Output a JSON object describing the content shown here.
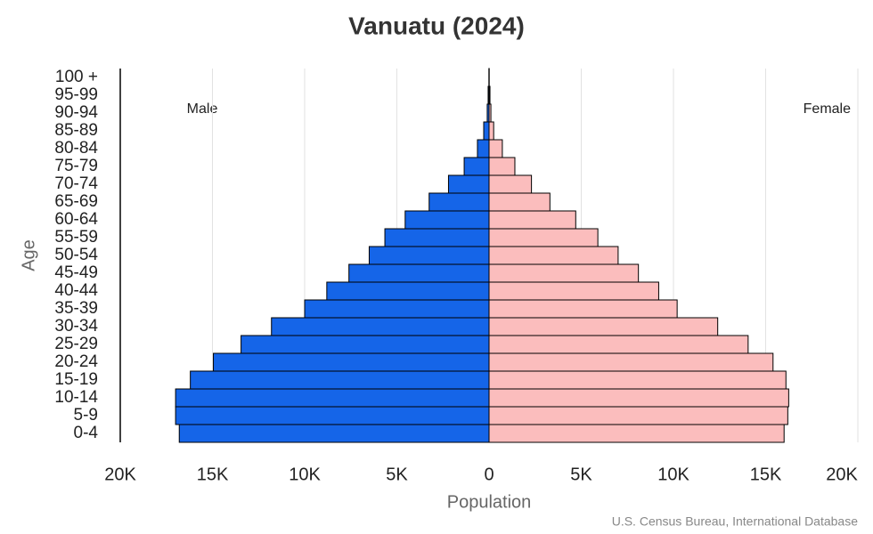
{
  "chart_data": {
    "type": "pyramid",
    "title": "Vanuatu (2024)",
    "categories": [
      "0-4",
      "5-9",
      "10-14",
      "15-19",
      "20-24",
      "25-29",
      "30-34",
      "35-39",
      "40-44",
      "45-49",
      "50-54",
      "55-59",
      "60-64",
      "65-69",
      "70-74",
      "75-79",
      "80-84",
      "85-89",
      "90-94",
      "95-99",
      "100 +"
    ],
    "series": [
      {
        "name": "Male",
        "color": "#1565e8",
        "values": [
          16800,
          17000,
          17000,
          16200,
          14950,
          13450,
          11800,
          10000,
          8800,
          7600,
          6500,
          5650,
          4550,
          3250,
          2200,
          1350,
          630,
          290,
          100,
          50,
          10
        ]
      },
      {
        "name": "Female",
        "color": "#fbbdbd",
        "values": [
          16000,
          16200,
          16250,
          16100,
          15400,
          14050,
          12400,
          10200,
          9200,
          8100,
          7000,
          5900,
          4700,
          3300,
          2300,
          1400,
          720,
          250,
          100,
          50,
          10
        ]
      }
    ],
    "xlim": [
      -20000,
      20000
    ],
    "xticks": [
      {
        "value": -20000,
        "label": "20K"
      },
      {
        "value": -15000,
        "label": "15K"
      },
      {
        "value": -10000,
        "label": "10K"
      },
      {
        "value": -5000,
        "label": "5K"
      },
      0,
      {
        "value": 5000,
        "label": "5K"
      },
      {
        "value": 10000,
        "label": "10K"
      },
      {
        "value": 15000,
        "label": "15K"
      },
      {
        "value": 20000,
        "label": "20K"
      }
    ],
    "xlabel": "Population",
    "ylabel": "Age",
    "source": "U.S. Census Bureau, International Database",
    "grid": true
  }
}
